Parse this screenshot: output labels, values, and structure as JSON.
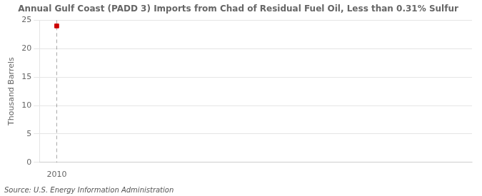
{
  "chart_data": {
    "type": "scatter",
    "title": "Annual Gulf Coast (PADD 3) Imports from Chad of Residual Fuel Oil, Less than 0.31% Sulfur",
    "y_label": "Thousand Barrels",
    "source": "Source: U.S. Energy Information Administration",
    "x": [
      2010
    ],
    "values": [
      24
    ],
    "color": "#cc0000",
    "marker": "square",
    "xlim": [
      2009.5,
      2022
    ],
    "xticks": [
      2010
    ],
    "ylim": [
      0,
      25
    ],
    "yticks": [
      0,
      5,
      10,
      15,
      20,
      25
    ],
    "grid": "y"
  }
}
